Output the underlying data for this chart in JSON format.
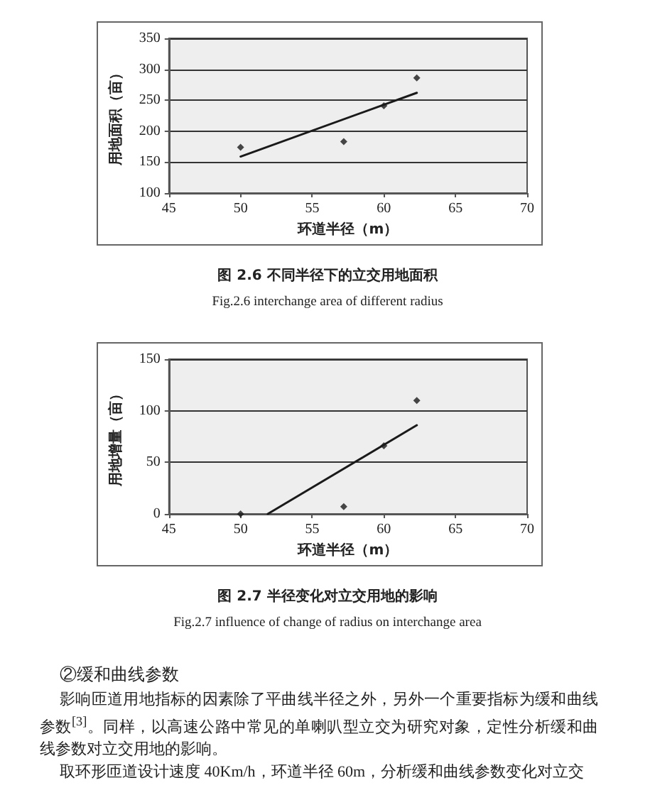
{
  "chart_data": [
    {
      "type": "scatter",
      "title": "图 2.6 不同半径下的立交用地面积",
      "subtitle": "Fig.2.6 interchange area of different radius",
      "xlabel": "环道半径（m）",
      "ylabel": "用地面积（亩）",
      "series": [
        {
          "color": "#1a1a1a",
          "x": [
            50,
            57.2,
            60,
            62.3
          ],
          "values": [
            174,
            183,
            241,
            286
          ]
        },
        {
          "type": "line",
          "color": "#1a1a1a",
          "marker": "none",
          "x": [
            50,
            62.3
          ],
          "values": [
            159,
            262
          ]
        }
      ],
      "xlim": [
        45,
        70
      ],
      "xticks": [
        45,
        50,
        55,
        60,
        65,
        70
      ],
      "ylim": [
        100,
        350
      ],
      "yticks": [
        100,
        150,
        200,
        250,
        300,
        350
      ],
      "grid": "y",
      "marker": "diamond",
      "line_style": "solid"
    },
    {
      "type": "scatter",
      "title": "图 2.7 半径变化对立交用地的影响",
      "subtitle": "Fig.2.7 influence of change of radius on interchange area",
      "xlabel": "环道半径（m）",
      "ylabel": "用地增量（亩）",
      "series": [
        {
          "color": "#1a1a1a",
          "x": [
            50,
            57.2,
            60,
            62.3
          ],
          "values": [
            0,
            7,
            66,
            110
          ]
        },
        {
          "type": "line",
          "color": "#1a1a1a",
          "marker": "none",
          "x": [
            51.9,
            62.3
          ],
          "values": [
            0,
            86
          ]
        }
      ],
      "xlim": [
        45,
        70
      ],
      "xticks": [
        45,
        50,
        55,
        60,
        65,
        70
      ],
      "ylim": [
        0,
        150
      ],
      "yticks": [
        0,
        50,
        100,
        150
      ],
      "grid": "y",
      "marker": "diamond",
      "line_style": "solid"
    },
    {
      "type": "other",
      "title": "②缓和曲线参数",
      "annotations": [
        "影响匝道用地指标的因素除了平曲线半径之外，另外一个重要指标为缓和曲线参数$^{[3]}$。同样，以高速公路中常见的单喇叭型立交为研究对象，定性分析缓和曲线参数对立交用地的影响。",
        "取环形匝道设计速度 40Km/h，环道半径 60m，分析缓和曲线参数变化对立交"
      ]
    }
  ]
}
